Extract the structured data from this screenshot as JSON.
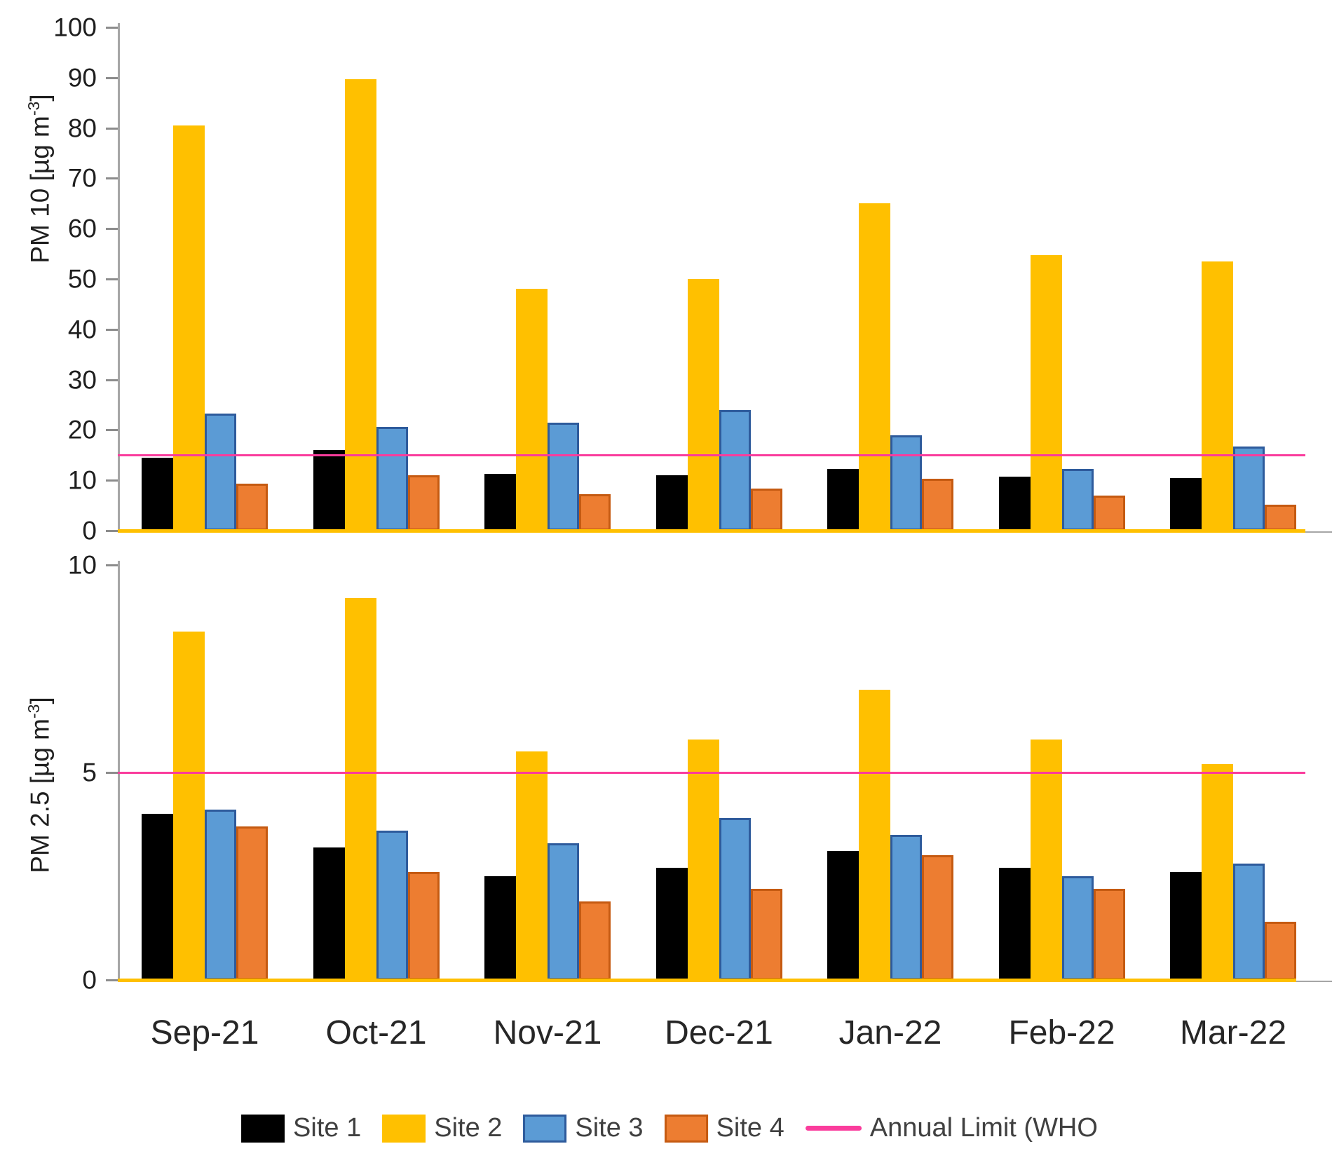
{
  "chart_data": [
    {
      "type": "bar",
      "ylabel": {
        "prefix": "PM 10 [µg m",
        "sup": "-3",
        "suffix": "]"
      },
      "ylim": [
        0,
        100
      ],
      "yticks": [
        0,
        10,
        20,
        30,
        40,
        50,
        60,
        70,
        80,
        90,
        100
      ],
      "grid": false,
      "categories": [
        "Sep-21",
        "Oct-21",
        "Nov-21",
        "Dec-21",
        "Jan-22",
        "Feb-22",
        "Mar-22"
      ],
      "series": [
        {
          "name": "Site 1",
          "values": [
            14.5,
            16.0,
            11.3,
            11.0,
            12.3,
            10.7,
            10.4
          ]
        },
        {
          "name": "Site 2",
          "values": [
            80.5,
            89.7,
            48.0,
            50.0,
            65.0,
            54.8,
            53.5
          ]
        },
        {
          "name": "Site 3",
          "values": [
            23.3,
            20.6,
            21.4,
            24.0,
            19.0,
            12.2,
            16.7
          ]
        },
        {
          "name": "Site 4",
          "values": [
            9.3,
            11.0,
            7.3,
            8.4,
            10.3,
            7.0,
            5.1
          ]
        }
      ],
      "limit_line": {
        "label": "Annual Limit (WHO",
        "value": 15
      }
    },
    {
      "type": "bar",
      "ylabel": {
        "prefix": "PM 2.5 [µg m",
        "sup": "-3",
        "suffix": "]"
      },
      "ylim": [
        0,
        10
      ],
      "yticks": [
        0,
        5,
        10
      ],
      "grid": false,
      "categories": [
        "Sep-21",
        "Oct-21",
        "Nov-21",
        "Dec-21",
        "Jan-22",
        "Feb-22",
        "Mar-22"
      ],
      "series": [
        {
          "name": "Site 1",
          "values": [
            4.0,
            3.2,
            2.5,
            2.7,
            3.1,
            2.7,
            2.6
          ]
        },
        {
          "name": "Site 2",
          "values": [
            8.4,
            9.2,
            5.5,
            5.8,
            7.0,
            5.8,
            5.2
          ]
        },
        {
          "name": "Site 3",
          "values": [
            4.1,
            3.6,
            3.3,
            3.9,
            3.5,
            2.5,
            2.8
          ]
        },
        {
          "name": "Site 4",
          "values": [
            3.7,
            2.6,
            1.9,
            2.2,
            3.0,
            2.2,
            1.4
          ]
        }
      ],
      "limit_line": {
        "label": "Annual Limit (WHO",
        "value": 5
      }
    }
  ],
  "legend": {
    "items": [
      {
        "label": "Site 1",
        "kind": "swatch",
        "series": "site1"
      },
      {
        "label": "Site 2",
        "kind": "swatch",
        "series": "site2"
      },
      {
        "label": "Site 3",
        "kind": "swatch",
        "series": "site3"
      },
      {
        "label": "Site 4",
        "kind": "swatch",
        "series": "site4"
      },
      {
        "label": "Annual Limit (WHO",
        "kind": "line",
        "series": "limit"
      }
    ]
  },
  "colors": {
    "site1_fill": "#000000",
    "site1_border": "#000000",
    "site2_fill": "#FFC000",
    "site2_border": "#FFC000",
    "site3_fill": "#5B9BD5",
    "site3_border": "#2E5B9C",
    "site4_fill": "#ED7D31",
    "site4_border": "#C55A11",
    "limit": "#FA3C9C",
    "axis": "#A6A6A6",
    "baseline": "#FFC000"
  }
}
